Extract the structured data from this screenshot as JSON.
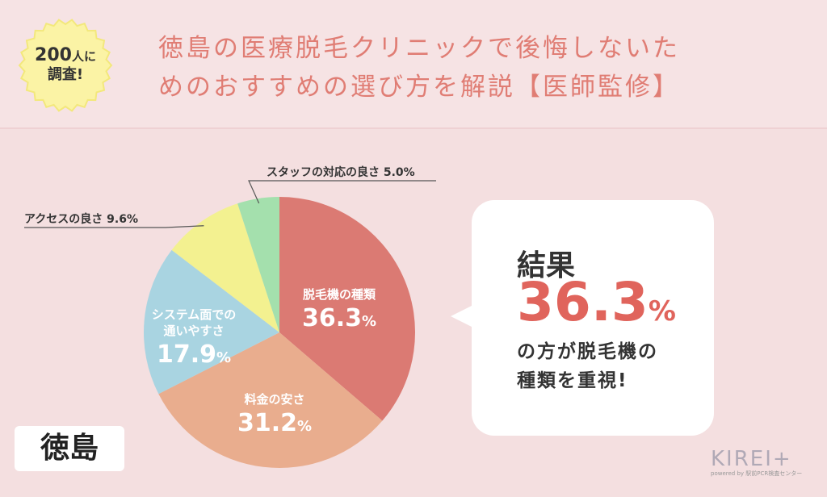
{
  "header": {
    "badge_line1_num": "200",
    "badge_line1_suffix": "人に",
    "badge_line2": "調査!",
    "title_line1": "徳島の医療脱毛クリニックで後悔しないた",
    "title_line2": "めのおすすめの選び方を解説【医師監修】"
  },
  "chart_data": {
    "type": "pie",
    "slices": [
      {
        "label_lines": [
          "脱毛機の種類"
        ],
        "value": 36.3,
        "value_text": "36.3",
        "unit": "%",
        "color": "#db7a73",
        "label_inside": true
      },
      {
        "label_lines": [
          "料金の安さ"
        ],
        "value": 31.2,
        "value_text": "31.2",
        "unit": "%",
        "color": "#e9ad8e",
        "label_inside": true
      },
      {
        "label_lines": [
          "システム面での",
          "通いやすさ"
        ],
        "value": 17.9,
        "value_text": "17.9",
        "unit": "%",
        "color": "#a9d4e1",
        "label_inside": true
      },
      {
        "label_lines": [
          "アクセスの良さ"
        ],
        "value": 9.6,
        "value_text": "9.6",
        "unit": "%",
        "color": "#f3f190",
        "label_inside": false,
        "callout": "アクセスの良さ 9.6%"
      },
      {
        "label_lines": [
          "スタッフの対応の良さ"
        ],
        "value": 5.0,
        "value_text": "5.0",
        "unit": "%",
        "color": "#a4e0ad",
        "label_inside": false,
        "callout": "スタッフの対応の良さ 5.0%"
      }
    ]
  },
  "result": {
    "label": "結果",
    "value_big": "36.3",
    "value_unit": "%",
    "line1": "の方が脱毛機の",
    "line2": "種類を重視!"
  },
  "region": "徳島",
  "logo": {
    "main": "KIREI+",
    "sub": "powered by 駅前PCR検査センター"
  },
  "colors": {
    "background": "#f4dfe0",
    "title": "#e07d74",
    "accent": "#e0645c",
    "badge": "#fbf3a5"
  }
}
